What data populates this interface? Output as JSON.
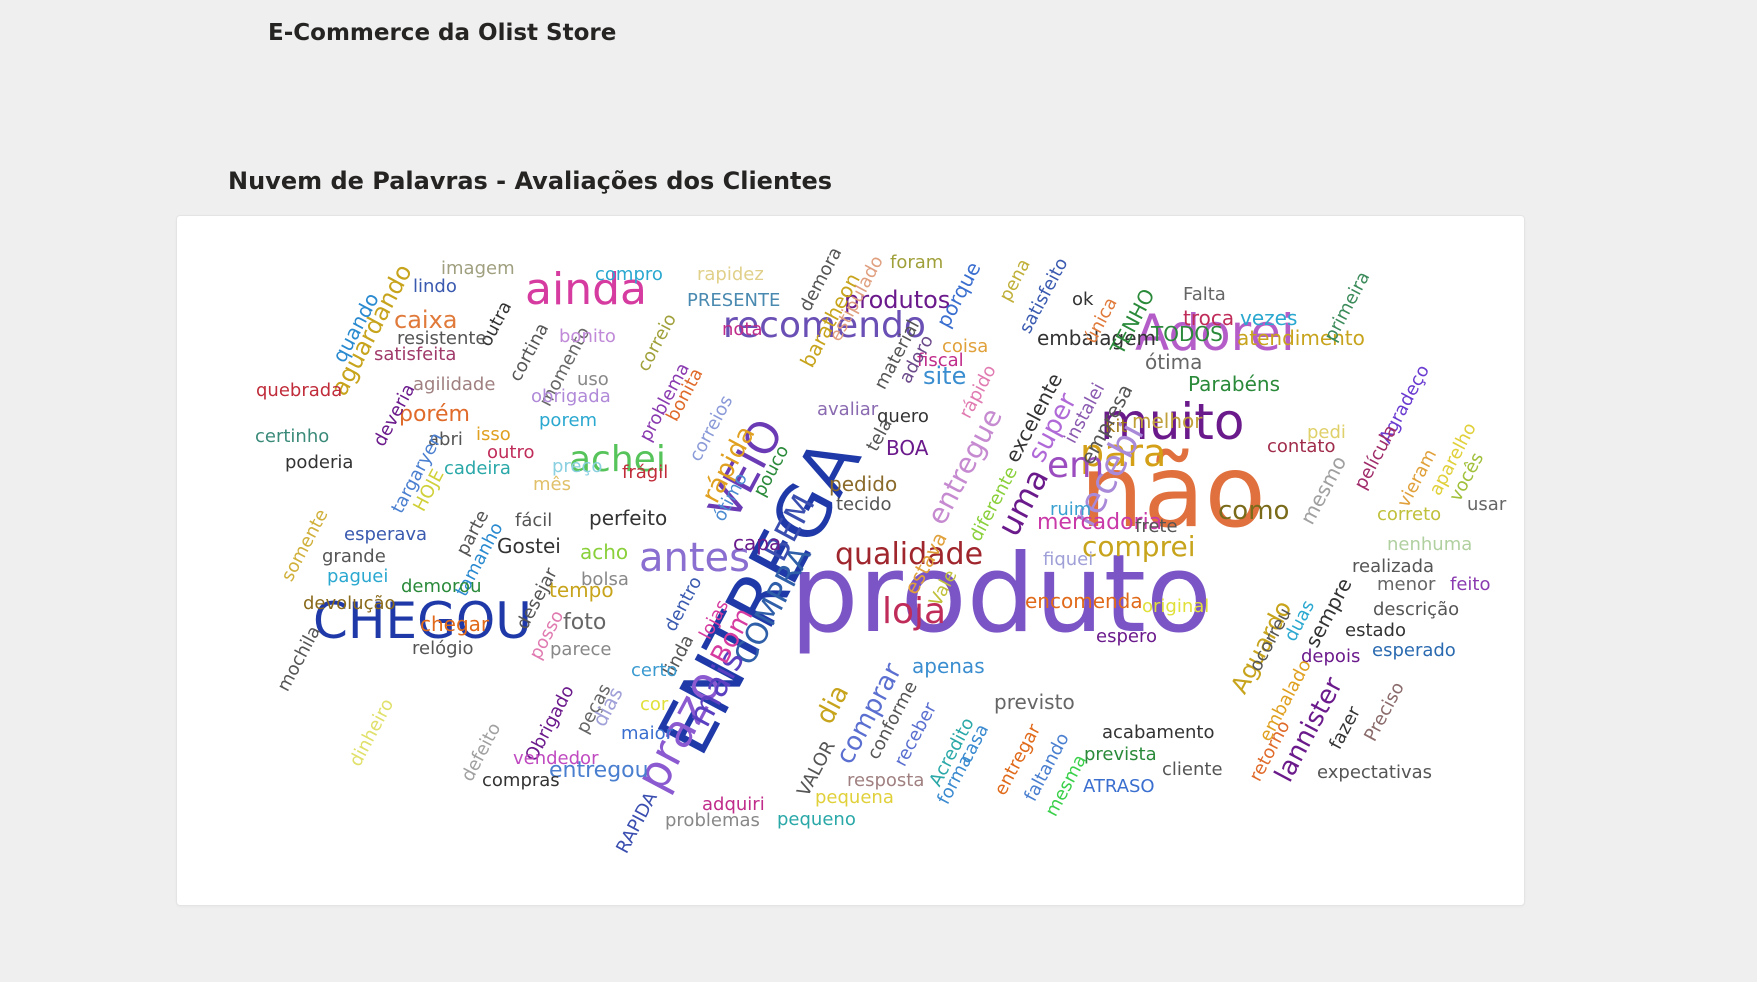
{
  "report": {
    "title": "E-Commerce da Olist Store"
  },
  "visual": {
    "title": "Nuvem de Palavras - Avaliações dos Clientes"
  },
  "cloud": {
    "words": [
      {
        "text": "produto",
        "color": "#7b55c6"
      },
      {
        "text": "não",
        "color": "#e0703d"
      },
      {
        "text": "ENTREGA",
        "color": "#1f3aa8"
      },
      {
        "text": "CHEGOU",
        "color": "#1f3aa8"
      },
      {
        "text": "Adorei",
        "color": "#b45dc8"
      },
      {
        "text": "muito",
        "color": "#6b1a8c"
      },
      {
        "text": "ainda",
        "color": "#d63ba0"
      },
      {
        "text": "recomendo",
        "color": "#6a4fb5"
      },
      {
        "text": "prazo",
        "color": "#8c5ad0"
      },
      {
        "text": "VEIO",
        "color": "#6a3bb5"
      },
      {
        "text": "para",
        "color": "#d4a017"
      },
      {
        "text": "antes",
        "color": "#8a6fd0"
      },
      {
        "text": "em",
        "color": "#9b4dc0"
      },
      {
        "text": "loja",
        "color": "#c02c5a"
      },
      {
        "text": "qualidade",
        "color": "#a0262d"
      },
      {
        "text": "COMPRA",
        "color": "#2f5fa8"
      },
      {
        "text": "BEM",
        "color": "#3a4eb0"
      },
      {
        "text": "mais",
        "color": "#5a3fc0"
      },
      {
        "text": "recebi",
        "color": "#a98ad8"
      },
      {
        "text": "achei",
        "color": "#56c45a"
      },
      {
        "text": "comprei",
        "color": "#c7a41c"
      },
      {
        "text": "uma",
        "color": "#6b1a8c"
      },
      {
        "text": "entregue",
        "color": "#c68ad0"
      },
      {
        "text": "rápida",
        "color": "#e0a020"
      },
      {
        "text": "produtos",
        "color": "#6b1a8c"
      },
      {
        "text": "como",
        "color": "#7a6b1a"
      },
      {
        "text": "Bom",
        "color": "#d63ba0"
      },
      {
        "text": "comprar",
        "color": "#5a6fd0"
      },
      {
        "text": "dia",
        "color": "#c7a41c"
      },
      {
        "text": "mercadoria",
        "color": "#c93aa8"
      },
      {
        "text": "entregou",
        "color": "#4a7fd0"
      },
      {
        "text": "super",
        "color": "#b06ad8"
      },
      {
        "text": "site",
        "color": "#3a8ed0"
      },
      {
        "text": "Aguardo",
        "color": "#c7a41c"
      },
      {
        "text": "lannister",
        "color": "#6b1a8c"
      },
      {
        "text": "aguardando",
        "color": "#c7a41c"
      },
      {
        "text": "porém",
        "color": "#e06a2a"
      },
      {
        "text": "caixa",
        "color": "#e07a3a"
      },
      {
        "text": "encomenda",
        "color": "#e06a1a"
      },
      {
        "text": "foto",
        "color": "#666666"
      },
      {
        "text": "apenas",
        "color": "#3a8ed0"
      },
      {
        "text": "previsto",
        "color": "#666666"
      },
      {
        "text": "acabamento",
        "color": "#333333"
      },
      {
        "text": "prevista",
        "color": "#2a8a3a"
      },
      {
        "text": "cliente",
        "color": "#555555"
      },
      {
        "text": "ATRASO",
        "color": "#3a6fd0"
      },
      {
        "text": "Parabéns",
        "color": "#2a8a3a"
      },
      {
        "text": "embalagem",
        "color": "#333333"
      },
      {
        "text": "ótima",
        "color": "#666666"
      },
      {
        "text": "atendimento",
        "color": "#c7a41c"
      },
      {
        "text": "TODOS",
        "color": "#2a8a3a"
      },
      {
        "text": "troca",
        "color": "#c02c5a"
      },
      {
        "text": "vezes",
        "color": "#2aa8d0"
      },
      {
        "text": "Falta",
        "color": "#666666"
      },
      {
        "text": "TENHO",
        "color": "#2a8a3a"
      },
      {
        "text": "única",
        "color": "#e07a3a"
      },
      {
        "text": "ok",
        "color": "#333333"
      },
      {
        "text": "primeira",
        "color": "#3a8a5a"
      },
      {
        "text": "Agradeço",
        "color": "#6a3bd0"
      },
      {
        "text": "película",
        "color": "#a02c6a"
      },
      {
        "text": "vieram",
        "color": "#e0a03a"
      },
      {
        "text": "aparelho",
        "color": "#e0d03a"
      },
      {
        "text": "vocês",
        "color": "#a0c03a"
      },
      {
        "text": "correto",
        "color": "#c0c03a"
      },
      {
        "text": "usar",
        "color": "#666666"
      },
      {
        "text": "nenhuma",
        "color": "#b0d0a0"
      },
      {
        "text": "feito",
        "color": "#8a3ab0"
      },
      {
        "text": "realizada",
        "color": "#555555"
      },
      {
        "text": "menor",
        "color": "#666666"
      },
      {
        "text": "descrição",
        "color": "#555555"
      },
      {
        "text": "estado",
        "color": "#333333"
      },
      {
        "text": "esperado",
        "color": "#2a6ab0"
      },
      {
        "text": "depois",
        "color": "#6b1a8c"
      },
      {
        "text": "sempre",
        "color": "#333333"
      },
      {
        "text": "mesmo",
        "color": "#a0a0a0"
      },
      {
        "text": "pedi",
        "color": "#e0d06a"
      },
      {
        "text": "contato",
        "color": "#a02c4a"
      },
      {
        "text": "melhor",
        "color": "#c0a03a"
      },
      {
        "text": "kit",
        "color": "#a07a1a"
      },
      {
        "text": "empresa",
        "color": "#555555"
      },
      {
        "text": "instalei",
        "color": "#8a5ab0"
      },
      {
        "text": "excelente",
        "color": "#333333"
      },
      {
        "text": "rápido",
        "color": "#e07ab0"
      },
      {
        "text": "coisa",
        "color": "#e0a03a"
      },
      {
        "text": "fiscal",
        "color": "#c02c8a"
      },
      {
        "text": "porque",
        "color": "#3a6fd0"
      },
      {
        "text": "pena",
        "color": "#c0b03a"
      },
      {
        "text": "satisfeito",
        "color": "#3a5ab0"
      },
      {
        "text": "foram",
        "color": "#a0a03a"
      },
      {
        "text": "estipulado",
        "color": "#e0a080"
      },
      {
        "text": "baratheon",
        "color": "#c7a41c"
      },
      {
        "text": "demora",
        "color": "#555555"
      },
      {
        "text": "PRESENTE",
        "color": "#4a8ab0"
      },
      {
        "text": "rapidez",
        "color": "#e0d08a"
      },
      {
        "text": "compro",
        "color": "#2aa8d0"
      },
      {
        "text": "nota",
        "color": "#c02c8a"
      },
      {
        "text": "material",
        "color": "#555555"
      },
      {
        "text": "adoro",
        "color": "#6b4a8a"
      },
      {
        "text": "imagem",
        "color": "#a0a080"
      },
      {
        "text": "lindo",
        "color": "#3a5ab0"
      },
      {
        "text": "quando",
        "color": "#2a8ad0"
      },
      {
        "text": "outra",
        "color": "#333333"
      },
      {
        "text": "resistente",
        "color": "#555555"
      },
      {
        "text": "satisfeita",
        "color": "#a03a6a"
      },
      {
        "text": "cortina",
        "color": "#555555"
      },
      {
        "text": "momento",
        "color": "#666666"
      },
      {
        "text": "bonito",
        "color": "#c08ad8"
      },
      {
        "text": "correio",
        "color": "#a0a03a"
      },
      {
        "text": "uso",
        "color": "#888888"
      },
      {
        "text": "obrigada",
        "color": "#b08ad8"
      },
      {
        "text": "problema",
        "color": "#8a3ab0"
      },
      {
        "text": "bonita",
        "color": "#e06a2a"
      },
      {
        "text": "correios",
        "color": "#8a9ad8"
      },
      {
        "text": "agilidade",
        "color": "#a08080"
      },
      {
        "text": "quebrada",
        "color": "#c02c3a"
      },
      {
        "text": "deveria",
        "color": "#6b1a8c"
      },
      {
        "text": "porem",
        "color": "#2aa8d0"
      },
      {
        "text": "isso",
        "color": "#e0a020"
      },
      {
        "text": "abri",
        "color": "#555555"
      },
      {
        "text": "targaryen",
        "color": "#4a7fd0"
      },
      {
        "text": "certinho",
        "color": "#3a8a7a"
      },
      {
        "text": "poderia",
        "color": "#333333"
      },
      {
        "text": "outro",
        "color": "#c02c5a"
      },
      {
        "text": "preço",
        "color": "#8ad0e0"
      },
      {
        "text": "cadeira",
        "color": "#2aa8a8"
      },
      {
        "text": "mês",
        "color": "#e0c06a"
      },
      {
        "text": "HOJE",
        "color": "#d0d03a"
      },
      {
        "text": "frágil",
        "color": "#c02c3a"
      },
      {
        "text": "ótimo",
        "color": "#4a8ad0"
      },
      {
        "text": "pouco",
        "color": "#2a8a3a"
      },
      {
        "text": "avaliar",
        "color": "#8a6ab0"
      },
      {
        "text": "quero",
        "color": "#333333"
      },
      {
        "text": "tela",
        "color": "#555555"
      },
      {
        "text": "BOA",
        "color": "#6b1a8c"
      },
      {
        "text": "pedido",
        "color": "#8a6a2a"
      },
      {
        "text": "tecido",
        "color": "#555555"
      },
      {
        "text": "diferente",
        "color": "#8ad03a"
      },
      {
        "text": "estava",
        "color": "#e0a03a"
      },
      {
        "text": "Vale",
        "color": "#c0c03a"
      },
      {
        "text": "fiquei",
        "color": "#a0a0d8"
      },
      {
        "text": "ruim",
        "color": "#3aa0d0"
      },
      {
        "text": "frete",
        "color": "#555555"
      },
      {
        "text": "original",
        "color": "#e0e03a"
      },
      {
        "text": "espero",
        "color": "#6b1a8c"
      },
      {
        "text": "ocorreu",
        "color": "#555555"
      },
      {
        "text": "duas",
        "color": "#2aa8d0"
      },
      {
        "text": "embalado",
        "color": "#e0a020"
      },
      {
        "text": "retorno",
        "color": "#e06a2a"
      },
      {
        "text": "fazer",
        "color": "#333333"
      },
      {
        "text": "Preciso",
        "color": "#8a6a6a"
      },
      {
        "text": "expectativas",
        "color": "#555555"
      },
      {
        "text": "somente",
        "color": "#d0b03a"
      },
      {
        "text": "parte",
        "color": "#555555"
      },
      {
        "text": "tamanho",
        "color": "#2a8ad0"
      },
      {
        "text": "fácil",
        "color": "#555555"
      },
      {
        "text": "esperava",
        "color": "#3a5ab0"
      },
      {
        "text": "Gostei",
        "color": "#333333"
      },
      {
        "text": "perfeito",
        "color": "#333333"
      },
      {
        "text": "capa",
        "color": "#6b1a8c"
      },
      {
        "text": "acho",
        "color": "#8ad03a"
      },
      {
        "text": "grande",
        "color": "#555555"
      },
      {
        "text": "paguei",
        "color": "#2aa8d0"
      },
      {
        "text": "bolsa",
        "color": "#888888"
      },
      {
        "text": "tempo",
        "color": "#c7a41c"
      },
      {
        "text": "demorou",
        "color": "#2a8a3a"
      },
      {
        "text": "desejar",
        "color": "#555555"
      },
      {
        "text": "dentro",
        "color": "#3a5ab0"
      },
      {
        "text": "lojas",
        "color": "#d63ba0"
      },
      {
        "text": "devolução",
        "color": "#8a6a1a"
      },
      {
        "text": "chegar",
        "color": "#e06a1a"
      },
      {
        "text": "posso",
        "color": "#e07ab0"
      },
      {
        "text": "mochila",
        "color": "#555555"
      },
      {
        "text": "relógio",
        "color": "#555555"
      },
      {
        "text": "parece",
        "color": "#888888"
      },
      {
        "text": "linda",
        "color": "#555555"
      },
      {
        "text": "certo",
        "color": "#3a9ad0"
      },
      {
        "text": "Obrigado",
        "color": "#6b1a8c"
      },
      {
        "text": "peças",
        "color": "#666666"
      },
      {
        "text": "dias",
        "color": "#a0a0d8"
      },
      {
        "text": "cor",
        "color": "#e0e03a"
      },
      {
        "text": "maior",
        "color": "#3a6fd0"
      },
      {
        "text": "dinheiro",
        "color": "#e0e06a"
      },
      {
        "text": "defeito",
        "color": "#a0a0a0"
      },
      {
        "text": "compras",
        "color": "#333333"
      },
      {
        "text": "vendedor",
        "color": "#c04ac0"
      },
      {
        "text": "RAPIDA",
        "color": "#3a4eb0"
      },
      {
        "text": "problemas",
        "color": "#888888"
      },
      {
        "text": "adquiri",
        "color": "#c02c8a"
      },
      {
        "text": "pequeno",
        "color": "#2aa8a8"
      },
      {
        "text": "pequena",
        "color": "#e0d03a"
      },
      {
        "text": "resposta",
        "color": "#a08080"
      },
      {
        "text": "VALOR",
        "color": "#555555"
      },
      {
        "text": "conforme",
        "color": "#555555"
      },
      {
        "text": "receber",
        "color": "#5a6fd0"
      },
      {
        "text": "Acredito",
        "color": "#2aa8a8"
      },
      {
        "text": "forma",
        "color": "#3a8ad0"
      },
      {
        "text": "casa",
        "color": "#3a8ad0"
      },
      {
        "text": "entregar",
        "color": "#e06a1a"
      },
      {
        "text": "faltando",
        "color": "#4a7fd0"
      },
      {
        "text": "mesma",
        "color": "#3ad04a"
      }
    ]
  }
}
